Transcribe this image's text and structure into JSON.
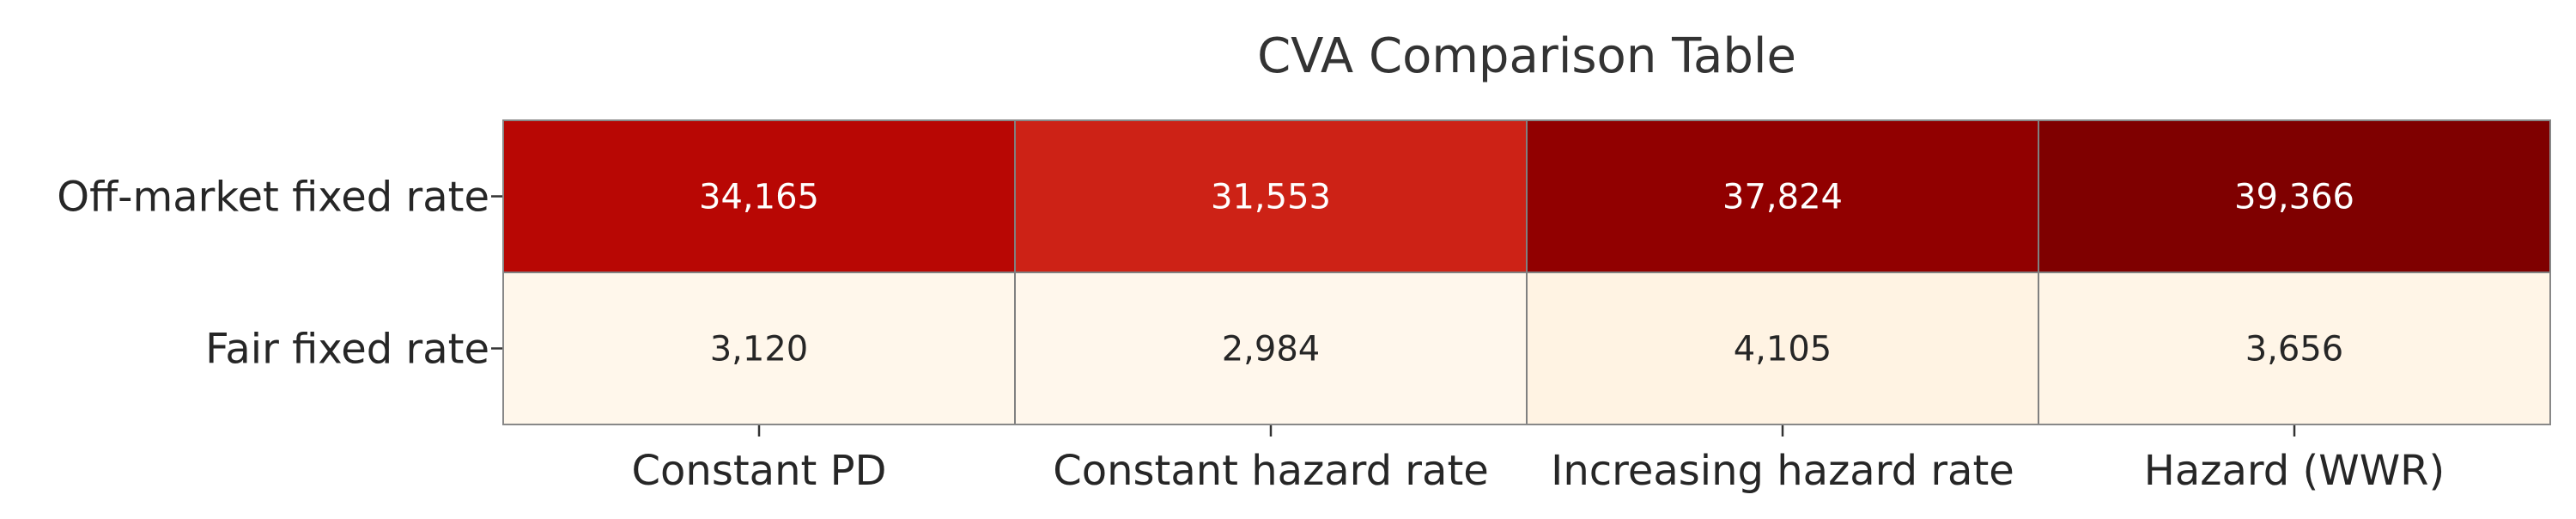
{
  "chart_data": {
    "type": "heatmap",
    "title": "CVA Comparison Table",
    "xlabel": "",
    "ylabel": "",
    "columns": [
      "Constant PD",
      "Constant hazard rate",
      "Increasing hazard rate",
      "Hazard (WWR)"
    ],
    "rows": [
      "Off-market fixed rate",
      "Fair fixed rate"
    ],
    "values": [
      [
        34165,
        31553,
        37824,
        39366
      ],
      [
        3120,
        2984,
        4105,
        3656
      ]
    ],
    "value_labels": [
      [
        "34,165",
        "31,553",
        "37,824",
        "39,366"
      ],
      [
        "3,120",
        "2,984",
        "4,105",
        "3,656"
      ]
    ],
    "colormap": "OrRd",
    "grid": false,
    "legend": "none"
  }
}
